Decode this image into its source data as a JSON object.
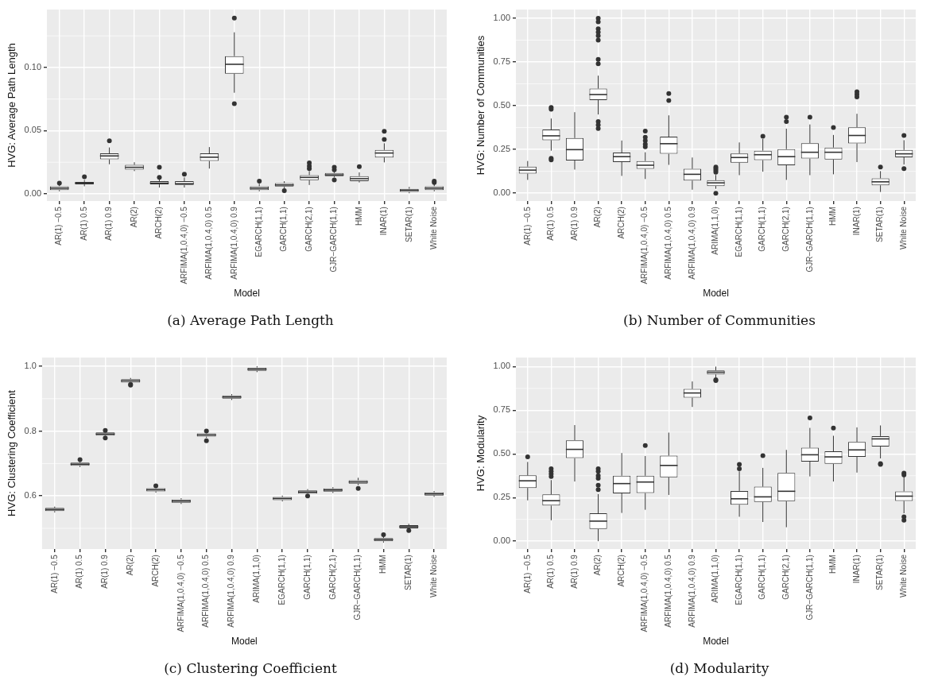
{
  "chart_data": [
    {
      "type": "box",
      "ylabel": "HVG: Average Path Length",
      "xlabel": "Model",
      "grid": true,
      "categories": [
        "AR(1) −0.5",
        "AR(1) 0.5",
        "AR(1) 0.9",
        "AR(2)",
        "ARCH(2)",
        "ARFIMA(1,0.4,0) −0.5",
        "ARFIMA(1,0.4,0) 0.5",
        "ARFIMA(1,0.4,0) 0.9",
        "EGARCH(1,1)",
        "GARCH(1,1)",
        "GARCH(2,1)",
        "GJR−GARCH(1,1)",
        "HMM",
        "INAR(1)",
        "SETAR(1)",
        "White Noise"
      ],
      "boxes": [
        {
          "low": 0.002,
          "q1": 0.003,
          "median": 0.0045,
          "q3": 0.006,
          "high": 0.007,
          "outliers": [
            0.0085
          ]
        },
        {
          "low": 0.006,
          "q1": 0.0075,
          "median": 0.0085,
          "q3": 0.0095,
          "high": 0.011,
          "outliers": [
            0.0135
          ]
        },
        {
          "low": 0.0234,
          "q1": 0.0273,
          "median": 0.03,
          "q3": 0.032,
          "high": 0.0367,
          "outliers": [
            0.042
          ]
        },
        {
          "low": 0.018,
          "q1": 0.0192,
          "median": 0.021,
          "q3": 0.0229,
          "high": 0.025
        },
        {
          "low": 0.005,
          "q1": 0.0075,
          "median": 0.0085,
          "q3": 0.01,
          "high": 0.012,
          "outliers": [
            0.013,
            0.021
          ]
        },
        {
          "low": 0.005,
          "q1": 0.007,
          "median": 0.008,
          "q3": 0.01,
          "high": 0.013,
          "outliers": [
            0.0155
          ]
        },
        {
          "low": 0.02,
          "q1": 0.026,
          "median": 0.029,
          "q3": 0.032,
          "high": 0.037
        },
        {
          "low": 0.08,
          "q1": 0.0951,
          "median": 0.1025,
          "q3": 0.1089,
          "high": 0.1278,
          "outliers": [
            0.139,
            0.0714
          ]
        },
        {
          "low": 0.002,
          "q1": 0.003,
          "median": 0.0045,
          "q3": 0.006,
          "high": 0.008,
          "outliers": [
            0.01
          ]
        },
        {
          "low": 0.004,
          "q1": 0.0058,
          "median": 0.007,
          "q3": 0.0085,
          "high": 0.01,
          "outliers": [
            0.0025
          ]
        },
        {
          "low": 0.007,
          "q1": 0.0108,
          "median": 0.013,
          "q3": 0.0148,
          "high": 0.018,
          "outliers": [
            0.02,
            0.022,
            0.0245
          ]
        },
        {
          "low": 0.013,
          "q1": 0.014,
          "median": 0.015,
          "q3": 0.0165,
          "high": 0.018,
          "outliers": [
            0.011,
            0.019,
            0.021
          ]
        },
        {
          "low": 0.009,
          "q1": 0.01,
          "median": 0.012,
          "q3": 0.014,
          "high": 0.017,
          "outliers": [
            0.0215
          ]
        },
        {
          "low": 0.0249,
          "q1": 0.0288,
          "median": 0.0323,
          "q3": 0.0347,
          "high": 0.04,
          "outliers": [
            0.043,
            0.0495
          ]
        },
        {
          "low": 0.0005,
          "q1": 0.0015,
          "median": 0.0028,
          "q3": 0.004,
          "high": 0.0055
        },
        {
          "low": 0.002,
          "q1": 0.003,
          "median": 0.0045,
          "q3": 0.006,
          "high": 0.0075,
          "outliers": [
            0.009,
            0.01
          ]
        }
      ],
      "ylim": [
        -0.0057,
        0.1458
      ],
      "yticks": [
        {
          "value": 0,
          "label": "0.00"
        },
        {
          "value": 0.05,
          "label": "0.05"
        },
        {
          "value": 0.1,
          "label": "0.10"
        }
      ],
      "annotations": [
        "(a) Average Path Length"
      ]
    },
    {
      "type": "box",
      "ylabel": "HVG: Number of Communities",
      "xlabel": "Model",
      "grid": true,
      "categories": [
        "AR(1) −0.5",
        "AR(1) 0.5",
        "AR(1) 0.9",
        "AR(2)",
        "ARCH(2)",
        "ARFIMA(1,0.4,0) −0.5",
        "ARFIMA(1,0.4,0) 0.5",
        "ARFIMA(1,0.4,0) 0.9",
        "ARIMA(1,1,0)",
        "EGARCH(1,1)",
        "GARCH(1,1)",
        "GARCH(2,1)",
        "GJR−GARCH(1,1)",
        "HMM",
        "INAR(1)",
        "SETAR(1)",
        "White Noise"
      ],
      "boxes": [
        {
          "low": 0.076,
          "q1": 0.112,
          "median": 0.132,
          "q3": 0.152,
          "high": 0.184
        },
        {
          "low": 0.243,
          "q1": 0.303,
          "median": 0.328,
          "q3": 0.364,
          "high": 0.427,
          "outliers": [
            0.49,
            0.48,
            0.2,
            0.19
          ]
        },
        {
          "low": 0.135,
          "q1": 0.187,
          "median": 0.249,
          "q3": 0.315,
          "high": 0.463
        },
        {
          "low": 0.45,
          "q1": 0.532,
          "median": 0.564,
          "q3": 0.598,
          "high": 0.672,
          "outliers": [
            1.0,
            0.98,
            0.94,
            0.92,
            0.9,
            0.875,
            0.765,
            0.74,
            0.41,
            0.39,
            0.37
          ]
        },
        {
          "low": 0.099,
          "q1": 0.178,
          "median": 0.209,
          "q3": 0.232,
          "high": 0.301
        },
        {
          "low": 0.081,
          "q1": 0.139,
          "median": 0.16,
          "q3": 0.184,
          "high": 0.234,
          "outliers": [
            0.355,
            0.32,
            0.3,
            0.28,
            0.265
          ]
        },
        {
          "low": 0.162,
          "q1": 0.225,
          "median": 0.283,
          "q3": 0.323,
          "high": 0.445,
          "outliers": [
            0.57,
            0.53
          ]
        },
        {
          "low": 0.02,
          "q1": 0.072,
          "median": 0.108,
          "q3": 0.139,
          "high": 0.204
        },
        {
          "low": 0.025,
          "q1": 0.041,
          "median": 0.059,
          "q3": 0.074,
          "high": 0.104,
          "outliers": [
            0.15,
            0.14,
            0.13,
            0.12,
            0.0
          ]
        },
        {
          "low": 0.103,
          "q1": 0.175,
          "median": 0.204,
          "q3": 0.227,
          "high": 0.29
        },
        {
          "low": 0.123,
          "q1": 0.189,
          "median": 0.22,
          "q3": 0.243,
          "high": 0.31,
          "outliers": [
            0.325
          ]
        },
        {
          "low": 0.076,
          "q1": 0.16,
          "median": 0.209,
          "q3": 0.252,
          "high": 0.369,
          "outliers": [
            0.435,
            0.41
          ]
        },
        {
          "low": 0.103,
          "q1": 0.198,
          "median": 0.234,
          "q3": 0.286,
          "high": 0.393,
          "outliers": [
            0.435
          ]
        },
        {
          "low": 0.108,
          "q1": 0.193,
          "median": 0.234,
          "q3": 0.261,
          "high": 0.333,
          "outliers": [
            0.375
          ]
        },
        {
          "low": 0.178,
          "q1": 0.285,
          "median": 0.33,
          "q3": 0.377,
          "high": 0.454,
          "outliers": [
            0.58,
            0.565,
            0.55
          ]
        },
        {
          "low": 0.007,
          "q1": 0.045,
          "median": 0.065,
          "q3": 0.085,
          "high": 0.126,
          "outliers": [
            0.15
          ]
        },
        {
          "low": 0.164,
          "q1": 0.205,
          "median": 0.225,
          "q3": 0.247,
          "high": 0.303,
          "outliers": [
            0.33,
            0.14
          ]
        }
      ],
      "ylim": [
        -0.045,
        1.05
      ],
      "yticks": [
        {
          "value": 0,
          "label": "0.00"
        },
        {
          "value": 0.25,
          "label": "0.25"
        },
        {
          "value": 0.5,
          "label": "0.50"
        },
        {
          "value": 0.75,
          "label": "0.75"
        },
        {
          "value": 1,
          "label": "1.00"
        }
      ],
      "annotations": [
        "(b) Number of Communities"
      ]
    },
    {
      "type": "box",
      "ylabel": "HVG: Clustering Coefficient",
      "xlabel": "Model",
      "grid": true,
      "categories": [
        "AR(1) −0.5",
        "AR(1) 0.5",
        "AR(1) 0.9",
        "AR(2)",
        "ARCH(2)",
        "ARFIMA(1,0.4,0) −0.5",
        "ARFIMA(1,0.4,0) 0.5",
        "ARFIMA(1,0.4,0) 0.9",
        "ARIMA(1,1,0)",
        "EGARCH(1,1)",
        "GARCH(1,1)",
        "GARCH(2,1)",
        "GJR−GARCH(1,1)",
        "HMM",
        "SETAR(1)",
        "White Noise"
      ],
      "boxes": [
        {
          "low": 0.549,
          "q1": 0.553,
          "median": 0.558,
          "q3": 0.563,
          "high": 0.567
        },
        {
          "low": 0.689,
          "q1": 0.693,
          "median": 0.698,
          "q3": 0.703,
          "high": 0.707,
          "outliers": [
            0.712
          ]
        },
        {
          "low": 0.782,
          "q1": 0.786,
          "median": 0.791,
          "q3": 0.796,
          "high": 0.8,
          "outliers": [
            0.802,
            0.779
          ]
        },
        {
          "low": 0.946,
          "q1": 0.95,
          "median": 0.955,
          "q3": 0.96,
          "high": 0.964,
          "outliers": [
            0.944,
            0.942
          ]
        },
        {
          "low": 0.61,
          "q1": 0.614,
          "median": 0.619,
          "q3": 0.624,
          "high": 0.628,
          "outliers": [
            0.631
          ]
        },
        {
          "low": 0.575,
          "q1": 0.579,
          "median": 0.584,
          "q3": 0.589,
          "high": 0.593
        },
        {
          "low": 0.779,
          "q1": 0.783,
          "median": 0.788,
          "q3": 0.793,
          "high": 0.797,
          "outliers": [
            0.8,
            0.77
          ]
        },
        {
          "low": 0.896,
          "q1": 0.9,
          "median": 0.905,
          "q3": 0.91,
          "high": 0.914
        },
        {
          "low": 0.982,
          "q1": 0.986,
          "median": 0.991,
          "q3": 0.996,
          "high": 1.0
        },
        {
          "low": 0.583,
          "q1": 0.587,
          "median": 0.592,
          "q3": 0.597,
          "high": 0.601
        },
        {
          "low": 0.603,
          "q1": 0.607,
          "median": 0.612,
          "q3": 0.617,
          "high": 0.621,
          "outliers": [
            0.6
          ]
        },
        {
          "low": 0.609,
          "q1": 0.613,
          "median": 0.618,
          "q3": 0.623,
          "high": 0.627
        },
        {
          "low": 0.633,
          "q1": 0.638,
          "median": 0.643,
          "q3": 0.648,
          "high": 0.656,
          "outliers": [
            0.623
          ]
        },
        {
          "low": 0.456,
          "q1": 0.46,
          "median": 0.465,
          "q3": 0.47,
          "high": 0.474,
          "outliers": [
            0.48
          ]
        },
        {
          "low": 0.496,
          "q1": 0.5,
          "median": 0.505,
          "q3": 0.51,
          "high": 0.514,
          "outliers": [
            0.493
          ]
        },
        {
          "low": 0.597,
          "q1": 0.601,
          "median": 0.606,
          "q3": 0.611,
          "high": 0.615
        }
      ],
      "ylim": [
        0.436,
        1.027
      ],
      "yticks": [
        {
          "value": 0.6,
          "label": "0.6"
        },
        {
          "value": 0.8,
          "label": "0.8"
        },
        {
          "value": 1,
          "label": "1.0"
        }
      ],
      "annotations": [
        "(c) Clustering Coefficient"
      ]
    },
    {
      "type": "box",
      "ylabel": "HVG: Modularity",
      "xlabel": "Model",
      "grid": true,
      "categories": [
        "AR(1) −0.5",
        "AR(1) 0.5",
        "AR(1) 0.9",
        "AR(2)",
        "ARCH(2)",
        "ARFIMA(1,0.4,0) −0.5",
        "ARFIMA(1,0.4,0) 0.5",
        "ARFIMA(1,0.4,0) 0.9",
        "ARIMA(1,1,0)",
        "EGARCH(1,1)",
        "GARCH(1,1)",
        "GARCH(2,1)",
        "GJR−GARCH(1,1)",
        "HMM",
        "INAR(1)",
        "SETAR(1)",
        "White Noise"
      ],
      "boxes": [
        {
          "low": 0.234,
          "q1": 0.305,
          "median": 0.346,
          "q3": 0.377,
          "high": 0.454,
          "outliers": [
            0.483
          ]
        },
        {
          "low": 0.12,
          "q1": 0.204,
          "median": 0.232,
          "q3": 0.268,
          "high": 0.35,
          "outliers": [
            0.415,
            0.4,
            0.385,
            0.37
          ]
        },
        {
          "low": 0.342,
          "q1": 0.476,
          "median": 0.526,
          "q3": 0.578,
          "high": 0.665
        },
        {
          "low": 0.0,
          "q1": 0.07,
          "median": 0.115,
          "q3": 0.16,
          "high": 0.27,
          "outliers": [
            0.415,
            0.4,
            0.375,
            0.36,
            0.32,
            0.295
          ]
        },
        {
          "low": 0.162,
          "q1": 0.274,
          "median": 0.33,
          "q3": 0.375,
          "high": 0.505
        },
        {
          "low": 0.18,
          "q1": 0.276,
          "median": 0.339,
          "q3": 0.375,
          "high": 0.488,
          "outliers": [
            0.548
          ]
        },
        {
          "low": 0.265,
          "q1": 0.366,
          "median": 0.434,
          "q3": 0.49,
          "high": 0.622
        },
        {
          "low": 0.769,
          "q1": 0.822,
          "median": 0.849,
          "q3": 0.872,
          "high": 0.915
        },
        {
          "low": 0.935,
          "q1": 0.955,
          "median": 0.968,
          "q3": 0.978,
          "high": 1.0,
          "outliers": [
            0.925,
            0.92
          ]
        },
        {
          "low": 0.14,
          "q1": 0.209,
          "median": 0.243,
          "q3": 0.288,
          "high": 0.4,
          "outliers": [
            0.44,
            0.415
          ]
        },
        {
          "low": 0.11,
          "q1": 0.225,
          "median": 0.254,
          "q3": 0.312,
          "high": 0.42,
          "outliers": [
            0.49
          ]
        },
        {
          "low": 0.08,
          "q1": 0.229,
          "median": 0.286,
          "q3": 0.391,
          "high": 0.523
        },
        {
          "low": 0.371,
          "q1": 0.456,
          "median": 0.495,
          "q3": 0.535,
          "high": 0.649,
          "outliers": [
            0.706
          ]
        },
        {
          "low": 0.342,
          "q1": 0.443,
          "median": 0.483,
          "q3": 0.515,
          "high": 0.604,
          "outliers": [
            0.648
          ]
        },
        {
          "low": 0.393,
          "q1": 0.483,
          "median": 0.523,
          "q3": 0.568,
          "high": 0.652
        },
        {
          "low": 0.474,
          "q1": 0.542,
          "median": 0.586,
          "q3": 0.602,
          "high": 0.663,
          "outliers": [
            0.445,
            0.44
          ]
        },
        {
          "low": 0.16,
          "q1": 0.231,
          "median": 0.258,
          "q3": 0.285,
          "high": 0.37,
          "outliers": [
            0.39,
            0.38,
            0.14,
            0.12
          ]
        }
      ],
      "ylim": [
        -0.045,
        1.052
      ],
      "yticks": [
        {
          "value": 0,
          "label": "0.00"
        },
        {
          "value": 0.25,
          "label": "0.25"
        },
        {
          "value": 0.5,
          "label": "0.50"
        },
        {
          "value": 0.75,
          "label": "0.75"
        },
        {
          "value": 1,
          "label": "1.00"
        }
      ],
      "annotations": [
        "(d) Modularity"
      ]
    }
  ]
}
